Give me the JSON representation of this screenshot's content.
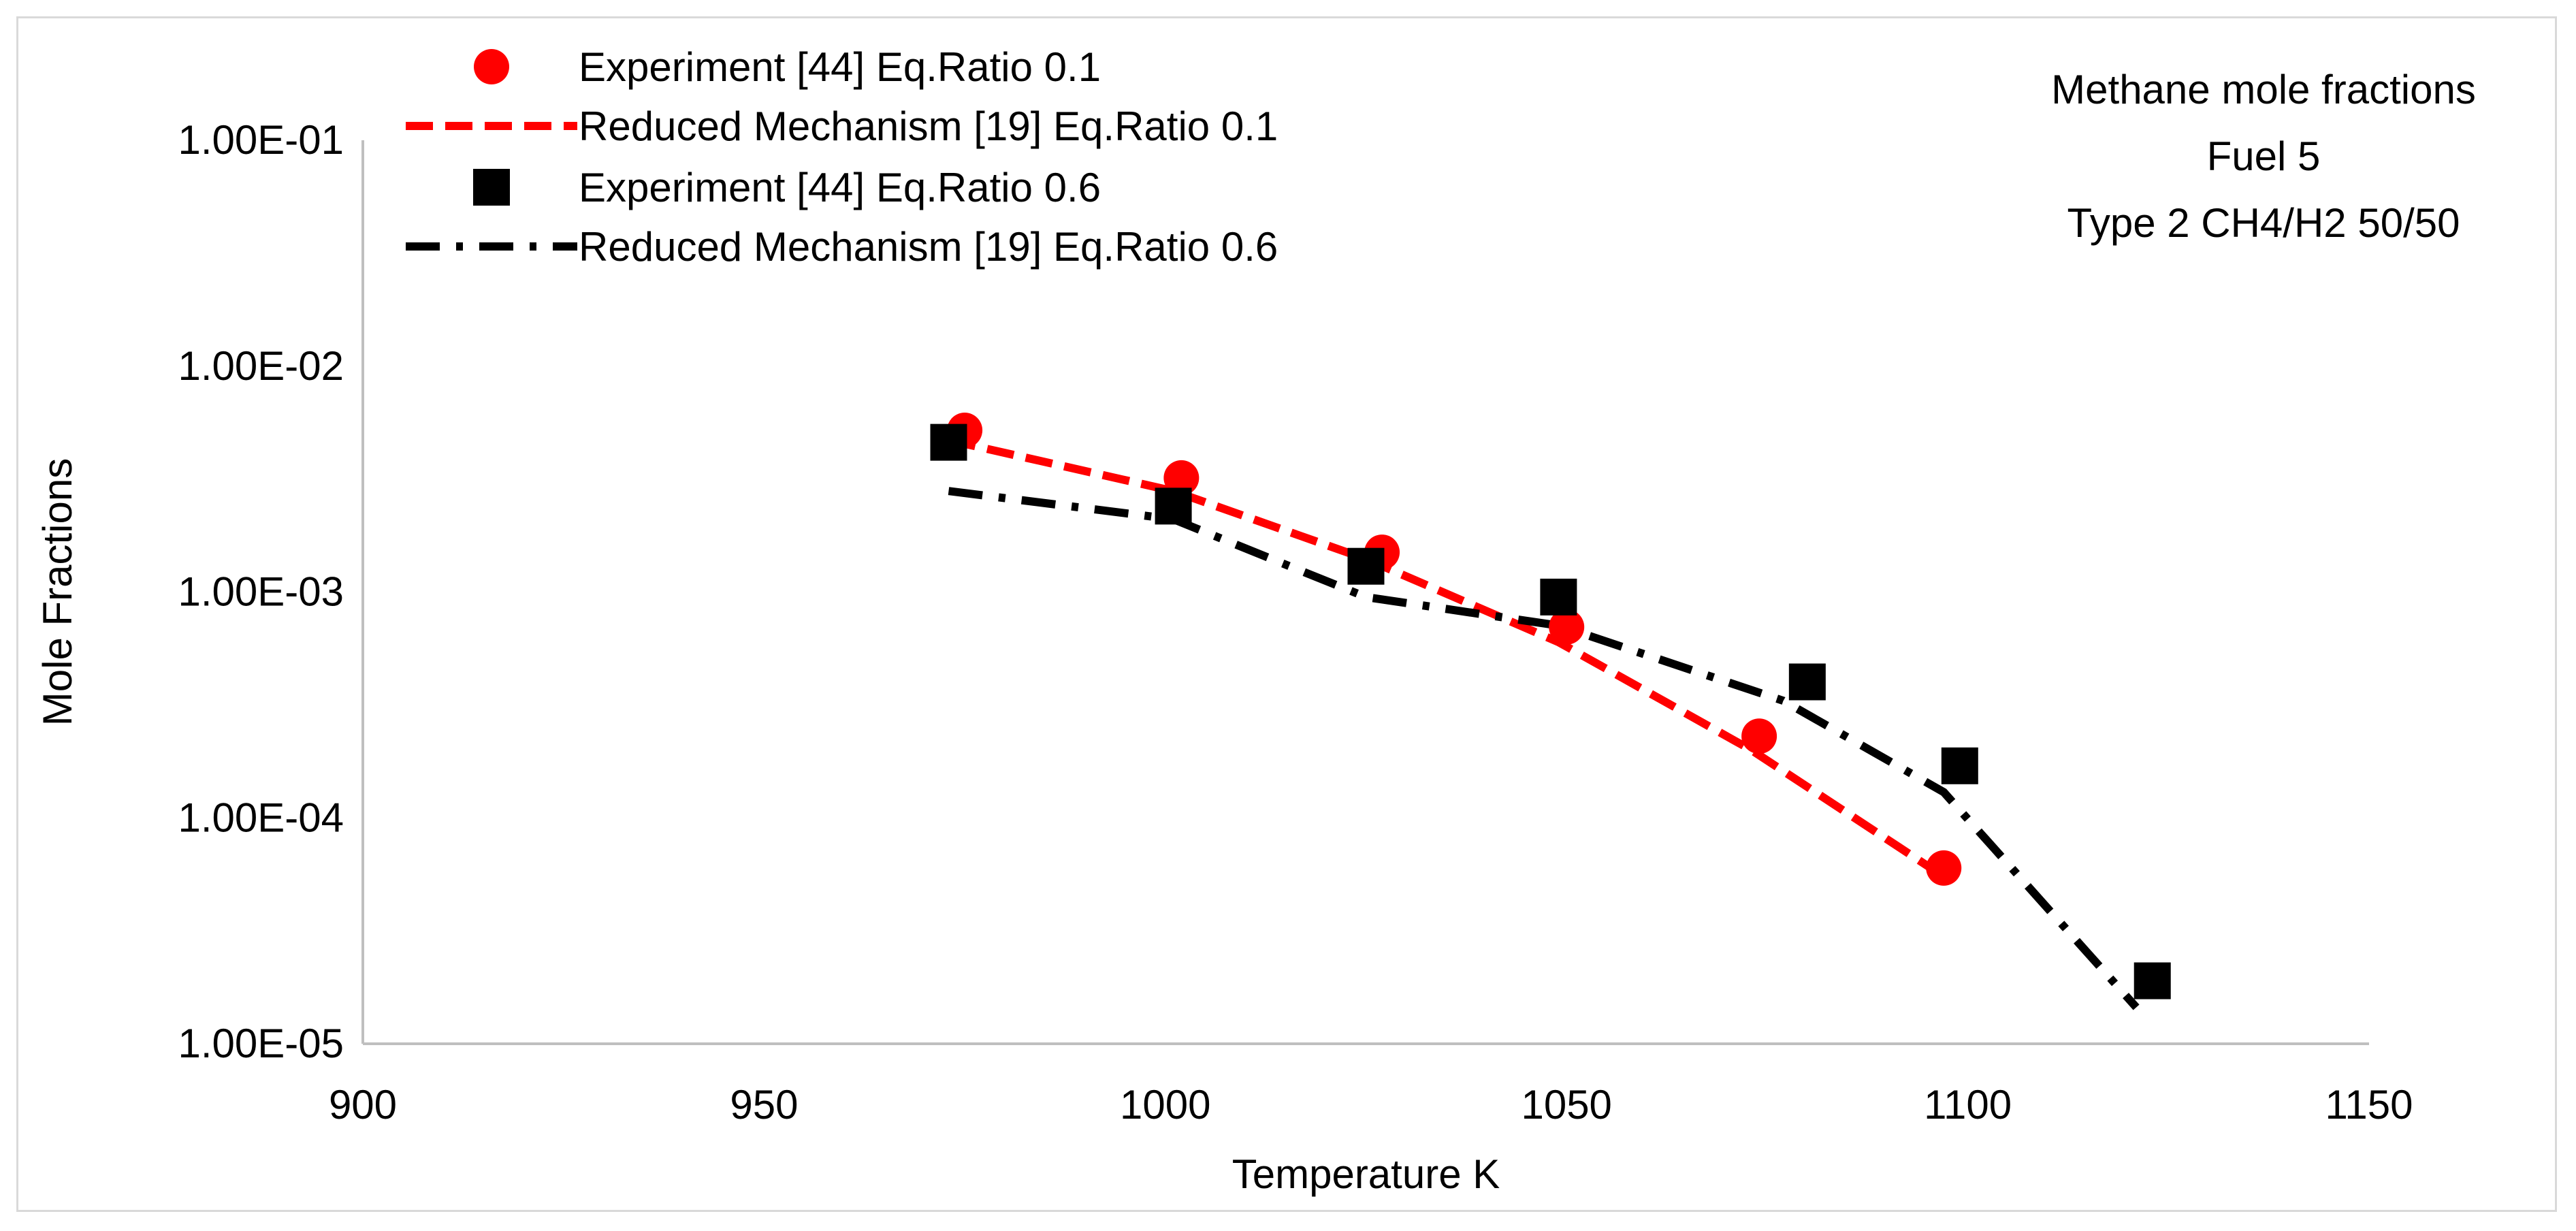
{
  "chart_data": {
    "type": "scatter",
    "title_lines": [
      "Methane mole fractions",
      "Fuel 5",
      "Type 2 CH4/H2 50/50"
    ],
    "xlabel": "Temperature K",
    "ylabel": "Mole Fractions",
    "xlim": [
      900,
      1150
    ],
    "ylim": [
      1e-05,
      0.1
    ],
    "yscale": "log",
    "x_ticks": [
      900,
      950,
      1000,
      1050,
      1100,
      1150
    ],
    "x_tick_labels": [
      "900",
      "950",
      "1000",
      "1050",
      "1100",
      "1150"
    ],
    "y_ticks": [
      1e-05,
      0.0001,
      0.001,
      0.01,
      0.1
    ],
    "y_tick_labels": [
      "1.00E-05",
      "1.00E-04",
      "1.00E-03",
      "1.00E-02",
      "1.00E-01"
    ],
    "grid": false,
    "legend_position": "top-left",
    "series": [
      {
        "name": "Experiment [44] Eq.Ratio 0.1",
        "kind": "marker-circle",
        "color": "#ff0000",
        "x": [
          975,
          1002,
          1027,
          1050,
          1074,
          1097
        ],
        "y": [
          0.0052,
          0.0032,
          0.0015,
          0.0007,
          0.00023,
          6e-05
        ]
      },
      {
        "name": "Reduced Mechanism [19] Eq.Ratio 0.1",
        "kind": "line-dashed",
        "color": "#ff0000",
        "x": [
          973,
          1001,
          1025,
          1049,
          1073,
          1097
        ],
        "y": [
          0.0047,
          0.0028,
          0.0014,
          0.0006,
          0.0002,
          5.5e-05
        ]
      },
      {
        "name": "Experiment [44] Eq.Ratio 0.6",
        "kind": "marker-square",
        "color": "#000000",
        "x": [
          973,
          1001,
          1025,
          1049,
          1080,
          1099,
          1123
        ],
        "y": [
          0.0046,
          0.0024,
          0.0013,
          0.00095,
          0.0004,
          0.00017,
          1.9e-05
        ]
      },
      {
        "name": "Reduced Mechanism [19] Eq.Ratio 0.6",
        "kind": "line-dashdot",
        "color": "#000000",
        "x": [
          973,
          1001,
          1025,
          1049,
          1077,
          1097,
          1121
        ],
        "y": [
          0.0028,
          0.0021,
          0.00095,
          0.00071,
          0.00033,
          0.00013,
          1.45e-05
        ]
      }
    ]
  }
}
